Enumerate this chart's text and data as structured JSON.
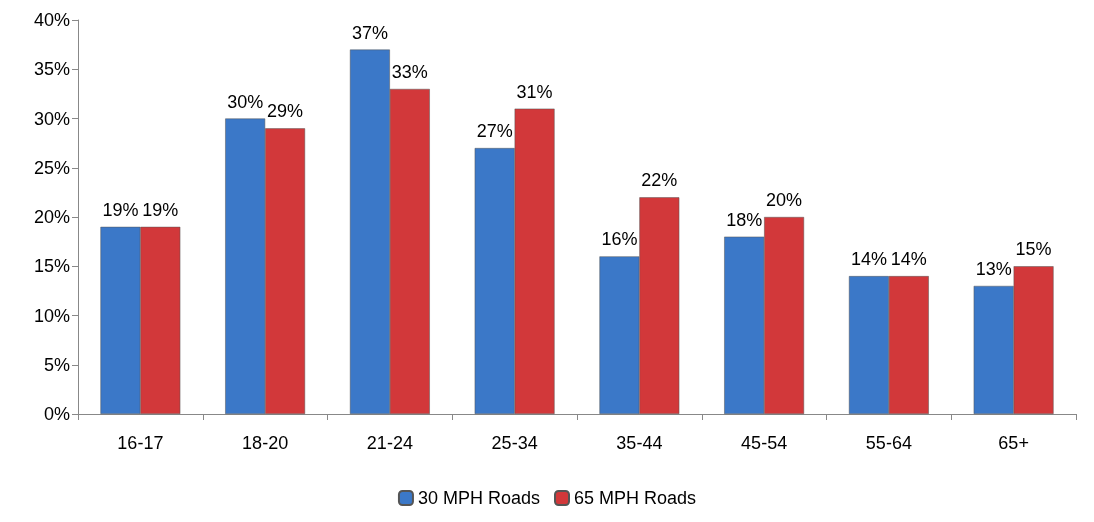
{
  "chart_data": {
    "type": "bar",
    "categories": [
      "16-17",
      "18-20",
      "21-24",
      "25-34",
      "35-44",
      "45-54",
      "55-64",
      "65+"
    ],
    "series": [
      {
        "name": "30 MPH Roads",
        "color": "#3b78c8",
        "values": [
          19,
          30,
          37,
          27,
          16,
          18,
          14,
          13
        ],
        "value_labels": [
          "19%",
          "30%",
          "37%",
          "27%",
          "16%",
          "18%",
          "14%",
          "13%"
        ]
      },
      {
        "name": "65 MPH Roads",
        "color": "#d2383a",
        "values": [
          19,
          29,
          33,
          31,
          22,
          20,
          14,
          15
        ],
        "value_labels": [
          "19%",
          "29%",
          "33%",
          "31%",
          "22%",
          "20%",
          "14%",
          "15%"
        ]
      }
    ],
    "ylim": [
      0,
      40
    ],
    "yticks": [
      {
        "value": 0,
        "label": "0%"
      },
      {
        "value": 5,
        "label": "5%"
      },
      {
        "value": 10,
        "label": "10%"
      },
      {
        "value": 15,
        "label": "15%"
      },
      {
        "value": 20,
        "label": "20%"
      },
      {
        "value": 25,
        "label": "25%"
      },
      {
        "value": 30,
        "label": "30%"
      },
      {
        "value": 35,
        "label": "35%"
      },
      {
        "value": 40,
        "label": "40%"
      }
    ],
    "grid": false,
    "legend": "bottom"
  }
}
